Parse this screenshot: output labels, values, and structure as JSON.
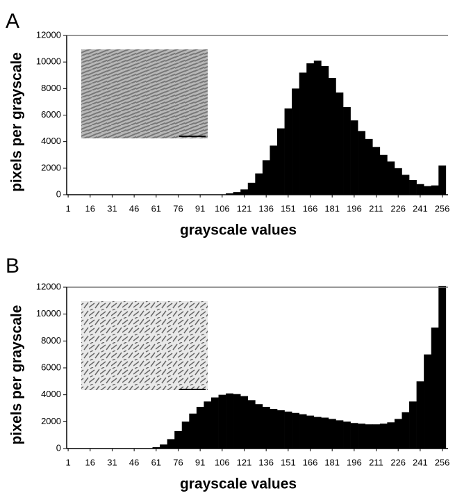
{
  "chart_data": [
    {
      "type": "histogram",
      "label": "A",
      "color": "#000000",
      "x_label": "grayscale values",
      "y_label": "pixels per grayscale",
      "x": [
        1,
        6,
        11,
        16,
        21,
        26,
        31,
        36,
        41,
        46,
        51,
        56,
        61,
        66,
        71,
        76,
        81,
        86,
        91,
        96,
        101,
        106,
        111,
        116,
        121,
        126,
        131,
        136,
        141,
        146,
        151,
        156,
        161,
        166,
        171,
        176,
        181,
        186,
        191,
        196,
        201,
        206,
        211,
        216,
        221,
        226,
        231,
        236,
        241,
        246,
        251,
        256
      ],
      "values": [
        0,
        0,
        0,
        0,
        0,
        0,
        0,
        0,
        0,
        0,
        0,
        0,
        0,
        0,
        0,
        0,
        0,
        0,
        0,
        0,
        0,
        0,
        100,
        200,
        400,
        900,
        1600,
        2600,
        3700,
        5000,
        6500,
        8000,
        9200,
        9900,
        10100,
        9700,
        8800,
        7700,
        6600,
        5600,
        4800,
        4200,
        3600,
        3000,
        2500,
        2000,
        1500,
        1100,
        800,
        650,
        700,
        2200
      ],
      "xlim": [
        0,
        260
      ],
      "xticks": [
        1,
        16,
        31,
        46,
        61,
        76,
        91,
        106,
        121,
        136,
        151,
        166,
        181,
        196,
        211,
        226,
        241,
        256
      ],
      "ylim": [
        0,
        12000
      ],
      "yticks": [
        0,
        2000,
        4000,
        6000,
        8000,
        10000,
        12000
      ]
    },
    {
      "type": "histogram",
      "label": "B",
      "color": "#000000",
      "x_label": "grayscale values",
      "y_label": "pixels per grayscale",
      "x": [
        1,
        6,
        11,
        16,
        21,
        26,
        31,
        36,
        41,
        46,
        51,
        56,
        61,
        66,
        71,
        76,
        81,
        86,
        91,
        96,
        101,
        106,
        111,
        116,
        121,
        126,
        131,
        136,
        141,
        146,
        151,
        156,
        161,
        166,
        171,
        176,
        181,
        186,
        191,
        196,
        201,
        206,
        211,
        216,
        221,
        226,
        231,
        236,
        241,
        246,
        251,
        256
      ],
      "values": [
        0,
        0,
        0,
        0,
        0,
        0,
        0,
        0,
        0,
        0,
        0,
        0,
        100,
        300,
        700,
        1300,
        2000,
        2600,
        3100,
        3500,
        3800,
        4000,
        4100,
        4050,
        3900,
        3600,
        3300,
        3100,
        2950,
        2850,
        2750,
        2650,
        2550,
        2450,
        2350,
        2300,
        2200,
        2100,
        2000,
        1900,
        1850,
        1800,
        1800,
        1850,
        1950,
        2200,
        2700,
        3500,
        5000,
        7000,
        9000,
        12400
      ],
      "xlim": [
        0,
        260
      ],
      "xticks": [
        1,
        16,
        31,
        46,
        61,
        76,
        91,
        106,
        121,
        136,
        151,
        166,
        181,
        196,
        211,
        226,
        241,
        256
      ],
      "ylim": [
        0,
        12000
      ],
      "yticks": [
        0,
        2000,
        4000,
        6000,
        8000,
        10000,
        12000
      ]
    }
  ]
}
